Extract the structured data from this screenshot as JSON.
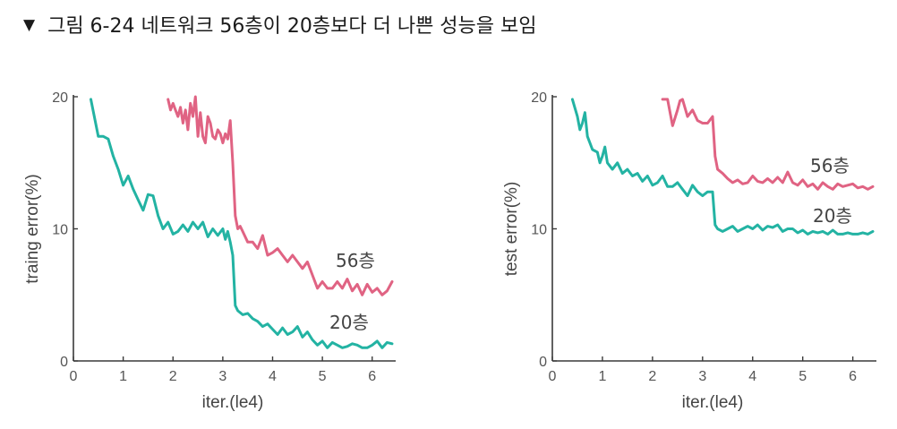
{
  "caption": {
    "marker": "▼",
    "text": "그림 6-24 네트워크 56층이 20층보다 더 나쁜 성능을 보임"
  },
  "colors": {
    "s56": "#e06383",
    "s20": "#23b3a3",
    "axis": "#3a3a3a",
    "text": "#444444"
  },
  "chart_data": [
    {
      "type": "line",
      "xlabel": "iter.(le4)",
      "ylabel": "traing error(%)",
      "xlim": [
        0,
        6.4
      ],
      "ylim": [
        0,
        20
      ],
      "xticks": [
        "0",
        "1",
        "2",
        "3",
        "4",
        "5",
        "6"
      ],
      "yticks": [
        "0",
        "10",
        "20"
      ],
      "grid": false,
      "legend": "inline labels",
      "series": [
        {
          "name": "56층",
          "color": "#e06383",
          "x": [
            1.9,
            1.95,
            2.0,
            2.05,
            2.1,
            2.15,
            2.2,
            2.25,
            2.3,
            2.35,
            2.4,
            2.45,
            2.5,
            2.55,
            2.6,
            2.65,
            2.7,
            2.75,
            2.8,
            2.85,
            2.9,
            2.95,
            3.0,
            3.05,
            3.1,
            3.15,
            3.2,
            3.25,
            3.3,
            3.35,
            3.4,
            3.5,
            3.6,
            3.7,
            3.8,
            3.9,
            4.0,
            4.1,
            4.2,
            4.3,
            4.4,
            4.5,
            4.6,
            4.7,
            4.8,
            4.9,
            5.0,
            5.1,
            5.2,
            5.3,
            5.4,
            5.5,
            5.6,
            5.7,
            5.8,
            5.9,
            6.0,
            6.1,
            6.2,
            6.3,
            6.4
          ],
          "y": [
            19.8,
            19.0,
            19.5,
            19.0,
            18.5,
            19.2,
            18.0,
            19.0,
            17.5,
            19.5,
            18.5,
            20.0,
            17.0,
            18.8,
            17.0,
            16.5,
            18.5,
            18.0,
            17.0,
            16.8,
            17.5,
            17.2,
            16.5,
            17.2,
            16.8,
            18.2,
            15.0,
            11.0,
            10.0,
            10.2,
            9.8,
            9.0,
            9.0,
            8.5,
            9.5,
            8.0,
            8.2,
            8.5,
            8.0,
            7.5,
            8.0,
            7.5,
            7.0,
            7.5,
            6.5,
            5.5,
            6.0,
            5.5,
            5.5,
            6.0,
            5.5,
            6.2,
            5.3,
            5.8,
            5.0,
            5.8,
            5.2,
            5.5,
            5.0,
            5.3,
            6.0
          ]
        },
        {
          "name": "20층",
          "color": "#23b3a3",
          "x": [
            0.35,
            0.5,
            0.6,
            0.7,
            0.8,
            0.9,
            1.0,
            1.1,
            1.2,
            1.3,
            1.4,
            1.5,
            1.6,
            1.7,
            1.8,
            1.9,
            2.0,
            2.1,
            2.2,
            2.3,
            2.4,
            2.5,
            2.6,
            2.7,
            2.8,
            2.9,
            3.0,
            3.05,
            3.1,
            3.15,
            3.2,
            3.25,
            3.3,
            3.4,
            3.5,
            3.6,
            3.7,
            3.8,
            3.9,
            4.0,
            4.1,
            4.2,
            4.3,
            4.4,
            4.5,
            4.6,
            4.7,
            4.8,
            4.9,
            5.0,
            5.1,
            5.2,
            5.3,
            5.4,
            5.5,
            5.6,
            5.7,
            5.8,
            5.9,
            6.0,
            6.1,
            6.2,
            6.3,
            6.4
          ],
          "y": [
            19.8,
            17.0,
            17.0,
            16.8,
            15.5,
            14.5,
            13.3,
            14.0,
            13.0,
            12.2,
            11.4,
            12.6,
            12.5,
            11.0,
            10.0,
            10.5,
            9.6,
            9.8,
            10.3,
            9.8,
            10.5,
            10.0,
            10.5,
            9.4,
            10.0,
            9.5,
            10.0,
            9.2,
            9.8,
            9.0,
            8.0,
            4.2,
            3.8,
            3.5,
            3.6,
            3.2,
            3.0,
            2.6,
            2.8,
            2.4,
            2.0,
            2.5,
            2.0,
            2.2,
            2.6,
            1.8,
            2.2,
            1.6,
            1.2,
            1.5,
            1.0,
            1.4,
            1.2,
            1.0,
            1.1,
            1.3,
            1.2,
            1.0,
            1.0,
            1.2,
            1.5,
            1.0,
            1.4,
            1.3
          ]
        }
      ]
    },
    {
      "type": "line",
      "xlabel": "iter.(le4)",
      "ylabel": "test error(%)",
      "xlim": [
        0,
        6.4
      ],
      "ylim": [
        0,
        20
      ],
      "xticks": [
        "0",
        "1",
        "2",
        "3",
        "4",
        "5",
        "6"
      ],
      "yticks": [
        "0",
        "10",
        "20"
      ],
      "grid": false,
      "legend": "inline labels",
      "series": [
        {
          "name": "56층",
          "color": "#e06383",
          "x": [
            2.2,
            2.3,
            2.4,
            2.5,
            2.55,
            2.6,
            2.7,
            2.8,
            2.9,
            3.0,
            3.1,
            3.2,
            3.25,
            3.3,
            3.4,
            3.5,
            3.6,
            3.7,
            3.8,
            3.9,
            4.0,
            4.1,
            4.2,
            4.3,
            4.4,
            4.5,
            4.6,
            4.7,
            4.8,
            4.9,
            5.0,
            5.1,
            5.2,
            5.3,
            5.4,
            5.5,
            5.6,
            5.7,
            5.8,
            5.9,
            6.0,
            6.1,
            6.2,
            6.3,
            6.4
          ],
          "y": [
            19.8,
            19.8,
            17.8,
            19.0,
            19.7,
            19.8,
            18.5,
            19.0,
            18.2,
            18.0,
            18.0,
            18.5,
            15.5,
            14.5,
            14.2,
            13.8,
            13.5,
            13.7,
            13.4,
            13.5,
            14.0,
            13.6,
            13.5,
            13.8,
            13.5,
            13.9,
            13.5,
            14.3,
            13.5,
            13.3,
            13.7,
            13.2,
            13.4,
            13.0,
            13.5,
            13.2,
            13.0,
            13.4,
            13.2,
            13.3,
            13.4,
            13.1,
            13.2,
            13.0,
            13.2
          ]
        },
        {
          "name": "20층",
          "color": "#23b3a3",
          "x": [
            0.4,
            0.5,
            0.55,
            0.6,
            0.65,
            0.7,
            0.8,
            0.9,
            0.95,
            1.0,
            1.05,
            1.1,
            1.2,
            1.3,
            1.4,
            1.5,
            1.6,
            1.7,
            1.8,
            1.9,
            2.0,
            2.1,
            2.2,
            2.3,
            2.4,
            2.5,
            2.6,
            2.7,
            2.8,
            2.9,
            3.0,
            3.1,
            3.2,
            3.25,
            3.3,
            3.4,
            3.5,
            3.6,
            3.7,
            3.8,
            3.9,
            4.0,
            4.1,
            4.2,
            4.3,
            4.4,
            4.5,
            4.6,
            4.7,
            4.8,
            4.9,
            5.0,
            5.1,
            5.2,
            5.3,
            5.4,
            5.5,
            5.6,
            5.7,
            5.8,
            5.9,
            6.0,
            6.1,
            6.2,
            6.3,
            6.4
          ],
          "y": [
            19.8,
            18.5,
            17.5,
            18.0,
            18.8,
            17.0,
            16.0,
            15.8,
            15.0,
            15.5,
            16.2,
            15.0,
            14.5,
            15.0,
            14.2,
            14.5,
            14.0,
            14.2,
            13.6,
            14.0,
            13.3,
            13.5,
            14.0,
            13.2,
            13.2,
            13.5,
            13.0,
            12.5,
            13.3,
            12.8,
            12.5,
            12.8,
            12.8,
            10.3,
            10.0,
            9.8,
            10.0,
            10.2,
            9.8,
            10.0,
            10.2,
            10.0,
            10.3,
            9.9,
            10.2,
            10.1,
            10.3,
            9.8,
            10.0,
            10.0,
            9.7,
            9.9,
            9.6,
            9.8,
            9.7,
            9.8,
            9.6,
            9.9,
            9.6,
            9.6,
            9.7,
            9.6,
            9.6,
            9.7,
            9.6,
            9.8
          ]
        }
      ]
    }
  ]
}
